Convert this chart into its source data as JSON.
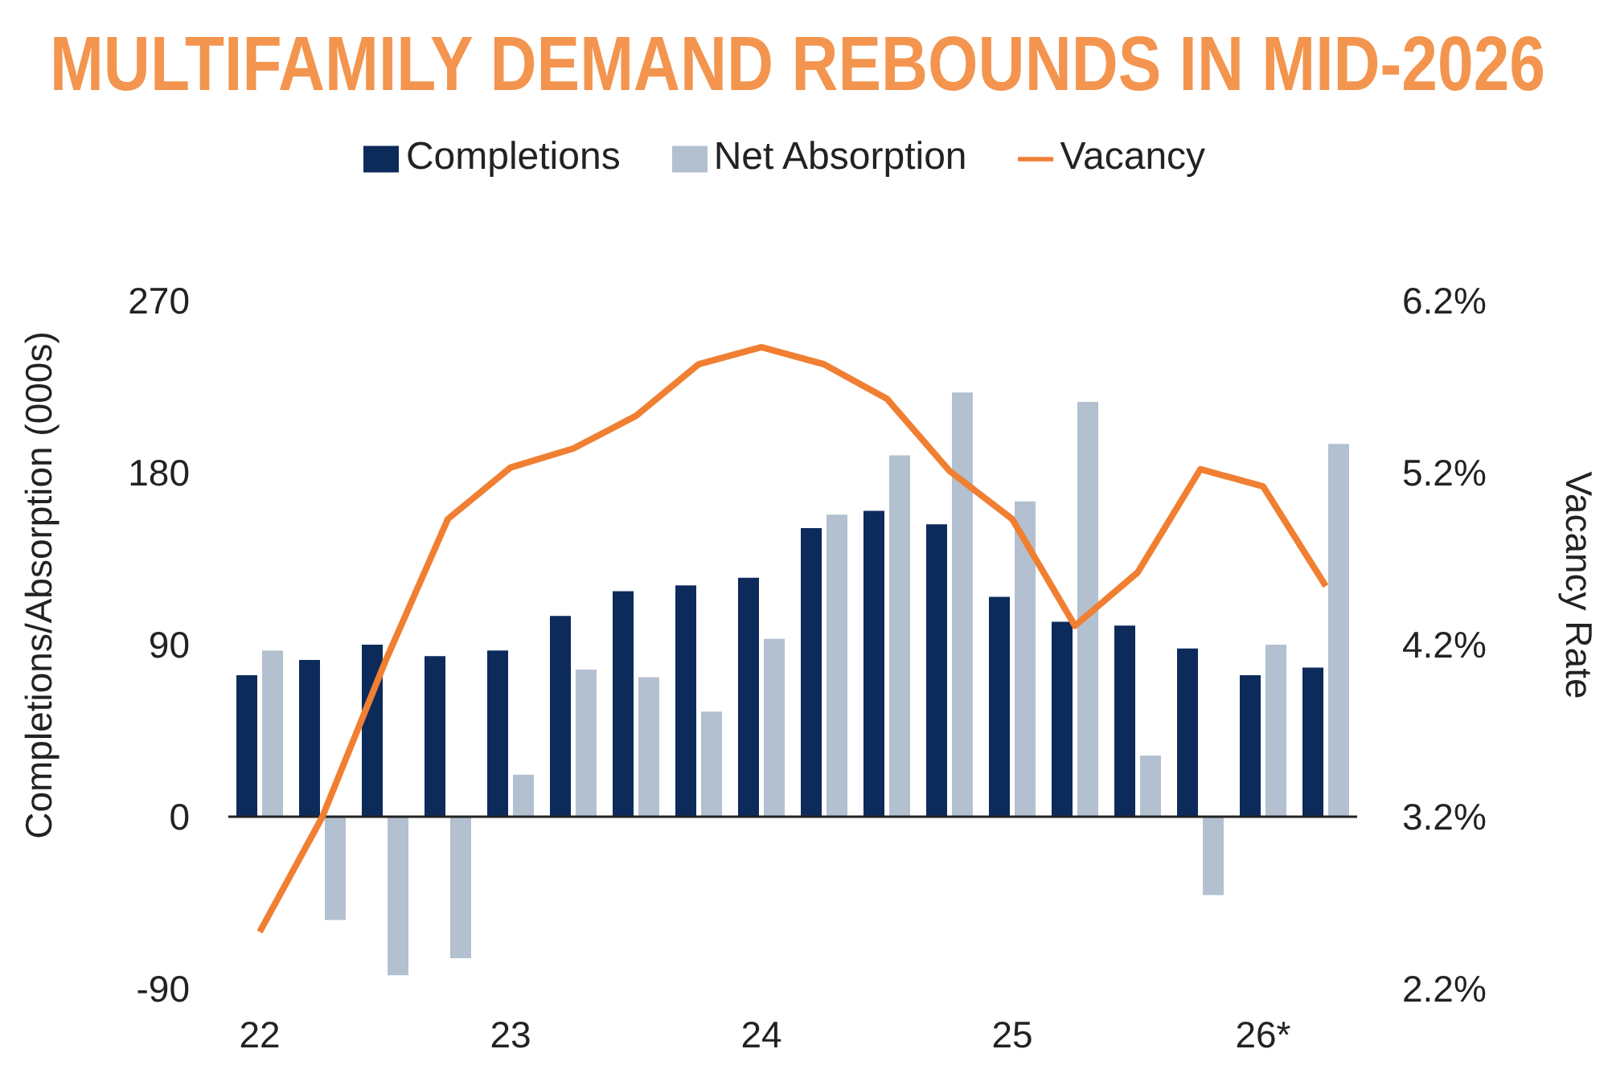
{
  "chart_data": {
    "type": "bar",
    "title": "MULTIFAMILY DEMAND REBOUNDS IN MID-2026",
    "ylabel": "Completions/Absorption (000s)",
    "y2label": "Vacancy Rate",
    "categories": [
      "22",
      null,
      null,
      null,
      "23",
      null,
      null,
      null,
      "24",
      null,
      null,
      null,
      "25",
      null,
      null,
      null,
      "26*",
      null
    ],
    "series": [
      {
        "name": "Completions",
        "color": "#0d2b5a",
        "values": [
          74,
          82,
          90,
          84,
          87,
          105,
          118,
          121,
          125,
          151,
          160,
          153,
          115,
          102,
          100,
          88,
          74,
          78
        ]
      },
      {
        "name": "Net Absorption",
        "color": "#b3c0cf",
        "values": [
          87,
          -54,
          -83,
          -74,
          22,
          77,
          73,
          55,
          93,
          158,
          189,
          222,
          165,
          217,
          32,
          -41,
          90,
          195
        ]
      },
      {
        "name": "Vacancy",
        "type": "line",
        "axis": "y2",
        "color": "#f07f32",
        "values": [
          2.53,
          3.2,
          4.1,
          4.93,
          5.23,
          5.34,
          5.53,
          5.83,
          5.93,
          5.83,
          5.63,
          5.21,
          4.93,
          4.31,
          4.62,
          5.22,
          5.12,
          4.54
        ]
      }
    ],
    "ylim": [
      -90,
      270
    ],
    "yticks": [
      -90,
      0,
      90,
      180,
      270
    ],
    "y2lim": [
      2.2,
      6.2
    ],
    "y2ticks": [
      {
        "value": 2.2,
        "label": "2.2%"
      },
      {
        "value": 3.2,
        "label": "3.2%"
      },
      {
        "value": 4.2,
        "label": "4.2%"
      },
      {
        "value": 5.2,
        "label": "5.2%"
      },
      {
        "value": 6.2,
        "label": "6.2%"
      }
    ],
    "ref_lines": [
      {
        "axis": "y",
        "value": 0,
        "color": "#222222"
      }
    ],
    "grid": false,
    "legend": "top"
  }
}
